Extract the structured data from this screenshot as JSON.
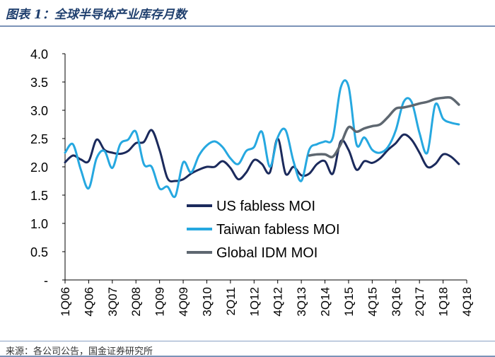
{
  "figure": {
    "title": "图表 1：全球半导体产业库存月数",
    "source": "来源：各公司公告，国金证券研究所"
  },
  "colors": {
    "us": "#1b2a5c",
    "taiwan": "#26a8e0",
    "idm": "#5e6770",
    "axis": "#000000",
    "title": "#1f3f6e"
  },
  "chart_data": {
    "type": "line",
    "title": "全球半导体产业库存月数",
    "xlabel": "",
    "ylabel": "",
    "ylim": [
      0,
      4.0
    ],
    "y_ticks": [
      "-",
      "0.5",
      "1.0",
      "1.5",
      "2.0",
      "2.5",
      "3.0",
      "3.5",
      "4.0"
    ],
    "x_tick_labels": [
      "1Q06",
      "4Q06",
      "3Q07",
      "2Q08",
      "1Q09",
      "4Q09",
      "3Q10",
      "2Q11",
      "1Q12",
      "4Q12",
      "3Q13",
      "2Q14",
      "1Q15",
      "4Q15",
      "3Q16",
      "2Q17",
      "1Q18",
      "4Q18"
    ],
    "x_tick_index": [
      0,
      3,
      6,
      9,
      12,
      15,
      18,
      21,
      24,
      27,
      30,
      33,
      36,
      39,
      42,
      45,
      48,
      51
    ],
    "x_range": [
      0,
      51
    ],
    "legend": [
      "US fabless MOI",
      "Taiwan fabless MOI",
      "Global IDM MOI"
    ],
    "legend_position": "center",
    "series": [
      {
        "name": "US fabless MOI",
        "x": [
          0,
          1,
          2,
          3,
          4,
          5,
          6,
          7,
          8,
          9,
          10,
          11,
          12,
          13,
          14,
          15,
          16,
          17,
          18,
          19,
          20,
          21,
          22,
          23,
          24,
          25,
          26,
          27,
          28,
          29,
          30,
          31,
          32,
          33,
          34,
          35,
          36,
          37,
          38,
          39,
          40,
          41,
          42,
          43,
          44,
          45,
          46,
          47,
          48,
          49,
          50
        ],
        "values": [
          2.08,
          2.2,
          2.13,
          2.1,
          2.48,
          2.3,
          2.25,
          2.23,
          2.28,
          2.42,
          2.44,
          2.65,
          2.3,
          1.8,
          1.75,
          1.78,
          1.88,
          1.95,
          2.0,
          2.0,
          2.1,
          1.98,
          1.78,
          1.9,
          2.12,
          2.05,
          1.9,
          2.5,
          1.88,
          2.0,
          1.85,
          1.88,
          2.05,
          2.1,
          1.88,
          2.45,
          2.3,
          1.95,
          2.1,
          2.07,
          2.15,
          2.3,
          2.42,
          2.57,
          2.48,
          2.25,
          2.0,
          2.05,
          2.22,
          2.18,
          2.05
        ]
      },
      {
        "name": "Taiwan fabless MOI",
        "x": [
          0,
          1,
          2,
          3,
          4,
          5,
          6,
          7,
          8,
          9,
          10,
          11,
          12,
          13,
          14,
          15,
          16,
          17,
          18,
          19,
          20,
          21,
          22,
          23,
          24,
          25,
          26,
          27,
          28,
          29,
          30,
          31,
          32,
          33,
          34,
          35,
          36,
          37,
          38,
          39,
          40,
          41,
          42,
          43,
          44,
          45,
          46,
          47,
          48,
          49,
          50
        ],
        "values": [
          2.25,
          2.4,
          1.95,
          1.62,
          2.15,
          2.28,
          1.98,
          2.4,
          2.48,
          2.62,
          2.05,
          2.0,
          1.62,
          1.65,
          1.48,
          2.08,
          1.9,
          2.2,
          2.38,
          2.45,
          2.35,
          2.15,
          2.05,
          2.28,
          2.35,
          2.62,
          2.0,
          2.52,
          2.65,
          2.1,
          1.75,
          2.3,
          2.4,
          2.45,
          2.52,
          3.4,
          3.42,
          2.4,
          2.52,
          2.3,
          2.25,
          2.35,
          2.65,
          3.15,
          3.15,
          2.6,
          2.25,
          3.1,
          2.85,
          2.78,
          2.75
        ]
      },
      {
        "name": "Global IDM MOI",
        "x": [
          31,
          32,
          33,
          34,
          35,
          36,
          37,
          38,
          39,
          40,
          41,
          42,
          43,
          44,
          45,
          46,
          47,
          48,
          49,
          50
        ],
        "values": [
          2.2,
          2.22,
          2.22,
          2.18,
          2.4,
          2.7,
          2.62,
          2.68,
          2.72,
          2.75,
          2.88,
          3.03,
          3.05,
          3.08,
          3.12,
          3.15,
          3.2,
          3.22,
          3.22,
          3.1
        ]
      }
    ]
  }
}
